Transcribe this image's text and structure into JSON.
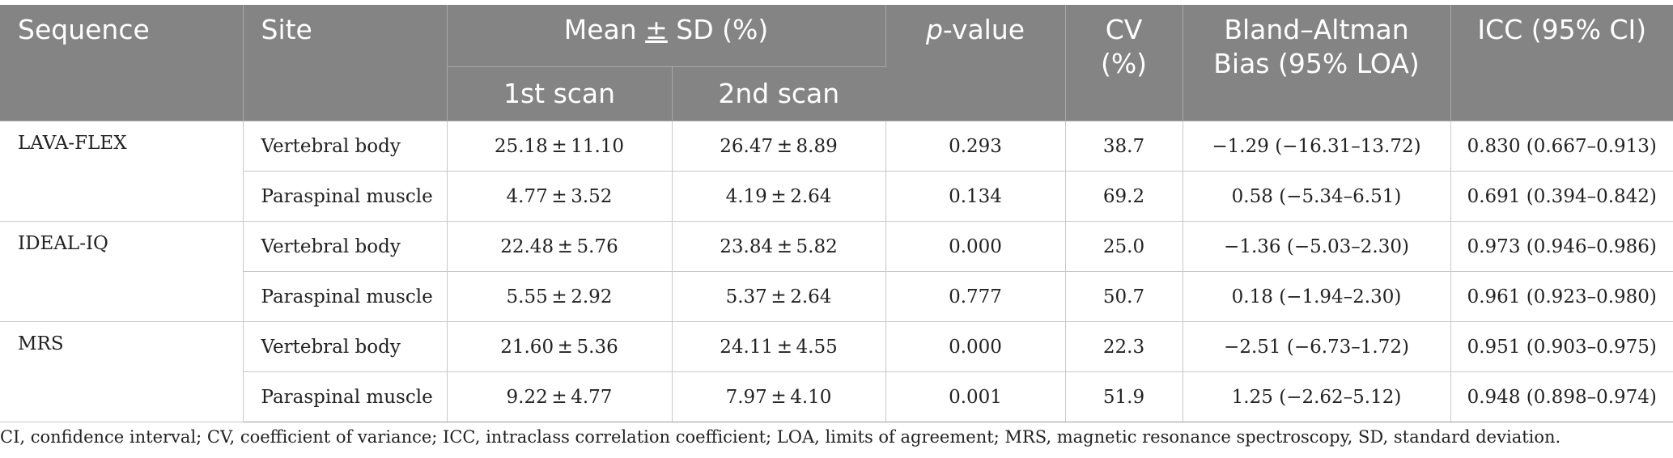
{
  "header": {
    "sequence": "Sequence",
    "site": "Site",
    "mean_sd_prefix": "Mean ",
    "mean_sd_pm": "±",
    "mean_sd_suffix": " SD (%)",
    "scan1": "1st scan",
    "scan2": "2nd scan",
    "p_italic": "p",
    "p_rest": "-value",
    "cv_line1": "CV",
    "cv_line2": "(%)",
    "ba_line1": "Bland–Altman",
    "ba_line2": "Bias (95% LOA)",
    "icc": "ICC (95% CI)"
  },
  "groups": [
    {
      "sequence": "LAVA-FLEX",
      "rows": [
        {
          "site": "Vertebral body",
          "scan1": "25.18 ± 11.10",
          "scan2": "26.47 ± 8.89",
          "p": "0.293",
          "cv": "38.7",
          "ba": "−1.29 (−16.31–13.72)",
          "icc": "0.830 (0.667–0.913)"
        },
        {
          "site": "Paraspinal muscle",
          "scan1": "4.77 ± 3.52",
          "scan2": "4.19 ± 2.64",
          "p": "0.134",
          "cv": "69.2",
          "ba": "0.58 (−5.34–6.51)",
          "icc": "0.691 (0.394–0.842)"
        }
      ]
    },
    {
      "sequence": "IDEAL-IQ",
      "rows": [
        {
          "site": "Vertebral body",
          "scan1": "22.48 ± 5.76",
          "scan2": "23.84 ± 5.82",
          "p": "0.000",
          "cv": "25.0",
          "ba": "−1.36 (−5.03–2.30)",
          "icc": "0.973 (0.946–0.986)"
        },
        {
          "site": "Paraspinal muscle",
          "scan1": "5.55 ± 2.92",
          "scan2": "5.37 ± 2.64",
          "p": "0.777",
          "cv": "50.7",
          "ba": "0.18 (−1.94–2.30)",
          "icc": "0.961 (0.923–0.980)"
        }
      ]
    },
    {
      "sequence": "MRS",
      "rows": [
        {
          "site": "Vertebral body",
          "scan1": "21.60 ± 5.36",
          "scan2": "24.11 ± 4.55",
          "p": "0.000",
          "cv": "22.3",
          "ba": "−2.51 (−6.73–1.72)",
          "icc": "0.951 (0.903–0.975)"
        },
        {
          "site": "Paraspinal muscle",
          "scan1": "9.22 ± 4.77",
          "scan2": "7.97 ± 4.10",
          "p": "0.001",
          "cv": "51.9",
          "ba": "1.25 (−2.62–5.12)",
          "icc": "0.948 (0.898–0.974)"
        }
      ]
    }
  ],
  "footnote": "CI, confidence interval; CV, coefficient of variance; ICC, intraclass correlation coefficient; LOA, limits of agreement; MRS, magnetic resonance spectroscopy, SD, standard deviation.",
  "colors": {
    "header_bg": "#848484",
    "header_text": "#ffffff",
    "body_text": "#222222",
    "grid": "#c8c8c8"
  }
}
